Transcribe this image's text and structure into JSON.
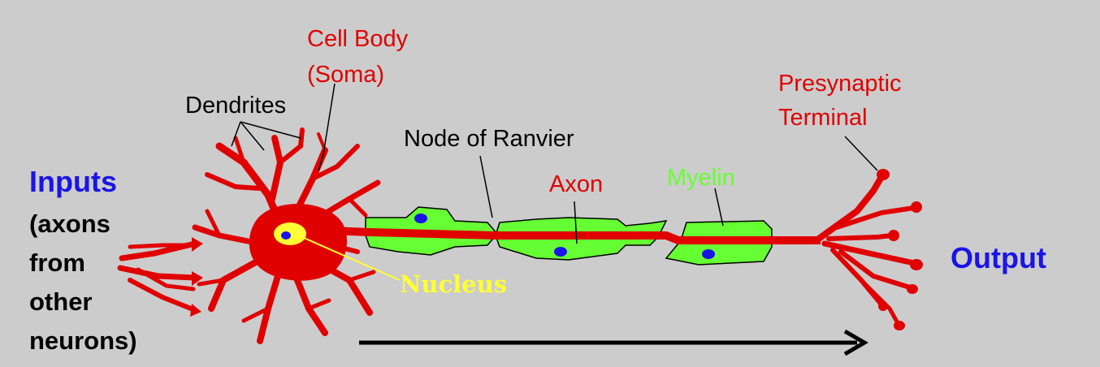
{
  "colors": {
    "background": "#cccccc",
    "neuron": "#e00000",
    "myelin": "#66ff33",
    "nucleus": "#ffff33",
    "schwann_nucleus": "#1a14e8",
    "pointer": "#000000",
    "side_labels": "#1a14e8"
  },
  "labels": {
    "cell_body": [
      "Cell Body",
      "(Soma)"
    ],
    "dendrites": "Dendrites",
    "node_of_ranvier": "Node of Ranvier",
    "axon": "Axon",
    "myelin": "Myelin",
    "presynaptic_terminal": [
      "Presynaptic",
      "Terminal"
    ],
    "nucleus": "Nucleus"
  },
  "inputs": {
    "title": "Inputs",
    "lines": [
      "(axons",
      "from",
      "other",
      "neurons)"
    ]
  },
  "output": {
    "title": "Output"
  }
}
